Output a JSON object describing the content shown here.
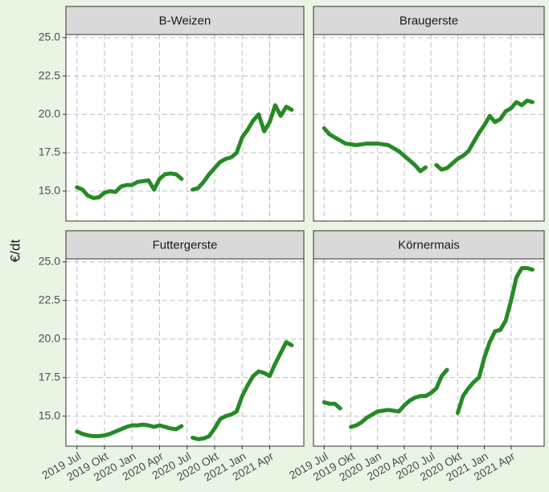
{
  "y_label": "€/dt",
  "chart_data": [
    {
      "type": "line",
      "title": "B-Weizen",
      "color": "#268a26",
      "x": [
        2019.5,
        2019.55,
        2019.6,
        2019.65,
        2019.7,
        2019.75,
        2019.8,
        2019.85,
        2019.9,
        2019.95,
        2020.0,
        2020.05,
        2020.1,
        2020.15,
        2020.2,
        2020.25,
        2020.3,
        2020.35,
        2020.4,
        2020.45,
        2020.5,
        2020.55,
        2020.6,
        2020.65,
        2020.7,
        2020.75,
        2020.8,
        2020.85,
        2020.9,
        2020.95,
        2021.0,
        2021.05,
        2021.1,
        2021.15,
        2021.2,
        2021.25,
        2021.3,
        2021.35,
        2021.4,
        2021.45
      ],
      "values": [
        15.25,
        15.1,
        14.7,
        14.55,
        14.6,
        14.9,
        15.0,
        14.95,
        15.3,
        15.4,
        15.4,
        15.6,
        15.65,
        15.7,
        15.1,
        15.8,
        16.1,
        16.15,
        16.1,
        15.8,
        null,
        15.1,
        15.2,
        15.6,
        16.1,
        16.5,
        16.9,
        17.1,
        17.2,
        17.5,
        18.5,
        19.0,
        19.6,
        20.0,
        18.9,
        19.5,
        20.6,
        19.9,
        20.5,
        20.3
      ],
      "xlim": [
        2019.4,
        2021.56
      ],
      "ylim": [
        13.05,
        25.2
      ],
      "xticks": [
        {
          "value": 2019.5,
          "label": "2019 Jul"
        },
        {
          "value": 2019.75,
          "label": "2019 Okt"
        },
        {
          "value": 2020.0,
          "label": "2020 Jan"
        },
        {
          "value": 2020.25,
          "label": "2020 Apr"
        },
        {
          "value": 2020.5,
          "label": "2020 Jul"
        },
        {
          "value": 2020.75,
          "label": "2020 Okt"
        },
        {
          "value": 2021.0,
          "label": "2021 Jan"
        },
        {
          "value": 2021.25,
          "label": "2021 Apr"
        }
      ],
      "yticks": [
        {
          "value": 15,
          "label": "15.0"
        },
        17.5,
        {
          "value": 20,
          "label": "20.0"
        },
        22.5,
        {
          "value": 25,
          "label": "25.0"
        }
      ],
      "grid": true
    },
    {
      "type": "line",
      "title": "Braugerste",
      "color": "#268a26",
      "x": [
        2019.5,
        2019.55,
        2019.6,
        2019.65,
        2019.7,
        2019.75,
        2019.8,
        2019.85,
        2019.9,
        2019.95,
        2020.0,
        2020.05,
        2020.1,
        2020.15,
        2020.2,
        2020.25,
        2020.3,
        2020.35,
        2020.4,
        2020.45,
        2020.5,
        2020.55,
        2020.6,
        2020.65,
        2020.7,
        2020.75,
        2020.8,
        2020.85,
        2020.9,
        2020.95,
        2021.0,
        2021.05,
        2021.1,
        2021.15,
        2021.2,
        2021.25,
        2021.3,
        2021.35,
        2021.4,
        2021.45
      ],
      "values": [
        19.1,
        18.7,
        18.5,
        18.3,
        18.1,
        18.05,
        18.0,
        18.05,
        18.1,
        18.1,
        18.1,
        18.05,
        18.0,
        17.8,
        17.6,
        17.3,
        17.0,
        16.7,
        16.3,
        16.55,
        null,
        16.7,
        16.4,
        16.5,
        16.8,
        17.1,
        17.3,
        17.6,
        18.2,
        18.8,
        19.3,
        19.9,
        19.5,
        19.7,
        20.2,
        20.4,
        20.8,
        20.6,
        20.9,
        20.8
      ],
      "xlim": [
        2019.4,
        2021.56
      ],
      "ylim": [
        13.05,
        25.2
      ],
      "xticks": [
        {
          "value": 2019.5,
          "label": "2019 Jul"
        },
        {
          "value": 2019.75,
          "label": "2019 Okt"
        },
        {
          "value": 2020.0,
          "label": "2020 Jan"
        },
        {
          "value": 2020.25,
          "label": "2020 Apr"
        },
        {
          "value": 2020.5,
          "label": "2020 Jul"
        },
        {
          "value": 2020.75,
          "label": "2020 Okt"
        },
        {
          "value": 2021.0,
          "label": "2021 Jan"
        },
        {
          "value": 2021.25,
          "label": "2021 Apr"
        }
      ],
      "yticks": [
        {
          "value": 15,
          "label": "15.0"
        },
        17.5,
        {
          "value": 20,
          "label": "20.0"
        },
        22.5,
        {
          "value": 25,
          "label": "25.0"
        }
      ],
      "grid": true
    },
    {
      "type": "line",
      "title": "Futtergerste",
      "color": "#268a26",
      "x": [
        2019.5,
        2019.55,
        2019.6,
        2019.65,
        2019.7,
        2019.75,
        2019.8,
        2019.85,
        2019.9,
        2019.95,
        2020.0,
        2020.05,
        2020.1,
        2020.15,
        2020.2,
        2020.25,
        2020.3,
        2020.35,
        2020.4,
        2020.45,
        2020.5,
        2020.55,
        2020.6,
        2020.65,
        2020.7,
        2020.75,
        2020.8,
        2020.85,
        2020.9,
        2020.95,
        2021.0,
        2021.05,
        2021.1,
        2021.15,
        2021.2,
        2021.25,
        2021.3,
        2021.35,
        2021.4,
        2021.45
      ],
      "values": [
        14.0,
        13.85,
        13.75,
        13.7,
        13.7,
        13.75,
        13.85,
        14.0,
        14.15,
        14.3,
        14.4,
        14.4,
        14.45,
        14.4,
        14.3,
        14.4,
        14.3,
        14.2,
        14.15,
        14.35,
        null,
        13.6,
        13.5,
        13.55,
        13.7,
        14.2,
        14.8,
        15.0,
        15.1,
        15.3,
        16.3,
        17.0,
        17.6,
        17.9,
        17.8,
        17.6,
        18.4,
        19.1,
        19.8,
        19.6
      ],
      "xlim": [
        2019.4,
        2021.56
      ],
      "ylim": [
        13.05,
        25.2
      ],
      "xticks": [
        {
          "value": 2019.5,
          "label": "2019 Jul"
        },
        {
          "value": 2019.75,
          "label": "2019 Okt"
        },
        {
          "value": 2020.0,
          "label": "2020 Jan"
        },
        {
          "value": 2020.25,
          "label": "2020 Apr"
        },
        {
          "value": 2020.5,
          "label": "2020 Jul"
        },
        {
          "value": 2020.75,
          "label": "2020 Okt"
        },
        {
          "value": 2021.0,
          "label": "2021 Jan"
        },
        {
          "value": 2021.25,
          "label": "2021 Apr"
        }
      ],
      "yticks": [
        {
          "value": 15,
          "label": "15.0"
        },
        17.5,
        {
          "value": 20,
          "label": "20.0"
        },
        22.5,
        {
          "value": 25,
          "label": "25.0"
        }
      ],
      "grid": true
    },
    {
      "type": "line",
      "title": "Körnermais",
      "color": "#268a26",
      "x": [
        2019.5,
        2019.55,
        2019.6,
        2019.65,
        2019.7,
        2019.75,
        2019.8,
        2019.85,
        2019.9,
        2019.95,
        2020.0,
        2020.05,
        2020.1,
        2020.15,
        2020.2,
        2020.25,
        2020.3,
        2020.35,
        2020.4,
        2020.45,
        2020.5,
        2020.55,
        2020.6,
        2020.65,
        2020.7,
        2020.75,
        2020.8,
        2020.85,
        2020.9,
        2020.95,
        2021.0,
        2021.05,
        2021.1,
        2021.15,
        2021.2,
        2021.25,
        2021.3,
        2021.35,
        2021.4,
        2021.45
      ],
      "values": [
        15.9,
        15.8,
        15.8,
        15.5,
        null,
        14.3,
        14.4,
        14.6,
        14.9,
        15.1,
        15.3,
        15.35,
        15.4,
        15.35,
        15.3,
        15.7,
        16.0,
        16.2,
        16.3,
        16.3,
        16.5,
        16.8,
        17.6,
        18.0,
        null,
        15.2,
        16.3,
        16.8,
        17.2,
        17.5,
        18.8,
        19.8,
        20.5,
        20.6,
        21.2,
        22.5,
        24.0,
        24.6,
        24.6,
        24.5
      ],
      "xlim": [
        2019.4,
        2021.56
      ],
      "ylim": [
        13.05,
        25.2
      ],
      "xticks": [
        {
          "value": 2019.5,
          "label": "2019 Jul"
        },
        {
          "value": 2019.75,
          "label": "2019 Okt"
        },
        {
          "value": 2020.0,
          "label": "2020 Jan"
        },
        {
          "value": 2020.25,
          "label": "2020 Apr"
        },
        {
          "value": 2020.5,
          "label": "2020 Jul"
        },
        {
          "value": 2020.75,
          "label": "2020 Okt"
        },
        {
          "value": 2021.0,
          "label": "2021 Jan"
        },
        {
          "value": 2021.25,
          "label": "2021 Apr"
        }
      ],
      "yticks": [
        {
          "value": 15,
          "label": "15.0"
        },
        17.5,
        {
          "value": 20,
          "label": "20.0"
        },
        22.5,
        {
          "value": 25,
          "label": "25.0"
        }
      ],
      "grid": true
    }
  ]
}
